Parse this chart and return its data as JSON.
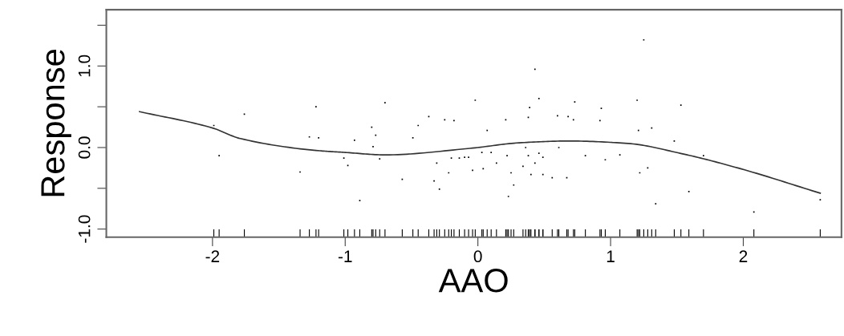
{
  "chart_data": {
    "type": "scatter",
    "xlabel": "AAO",
    "ylabel": "Response",
    "xlim": [
      -2.8,
      2.74
    ],
    "ylim": [
      -1.1,
      1.69
    ],
    "xticks": [
      -2,
      -1,
      0,
      1,
      2
    ],
    "yticks": [
      {
        "value": -1.0,
        "label": "-1.0"
      },
      {
        "value": -0.5,
        "label": null
      },
      {
        "value": 0.0,
        "label": "0.0"
      },
      {
        "value": 0.5,
        "label": null
      },
      {
        "value": 1.0,
        "label": "1.0"
      },
      {
        "value": 1.5,
        "label": null
      }
    ],
    "grid": false,
    "series": [
      {
        "type": "line",
        "color": "#333333",
        "line_style": "solid",
        "x": [
          -2.55,
          -2.0,
          -1.79,
          -1.19,
          -1.0,
          -0.7,
          -0.06,
          0.33,
          0.69,
          1.13,
          1.55,
          1.98,
          2.58
        ],
        "values": [
          0.44,
          0.24,
          0.11,
          -0.04,
          -0.06,
          -0.09,
          -0.01,
          0.06,
          0.08,
          0.05,
          -0.08,
          -0.26,
          -0.56
        ]
      },
      {
        "color": "#000000",
        "marker": "square",
        "x": [
          -1.99,
          -1.95,
          -1.76,
          -1.34,
          -1.27,
          -1.22,
          -1.2,
          -1.01,
          -0.98,
          -0.93,
          -0.89,
          -0.8,
          -0.77,
          -0.79,
          -0.74,
          -0.7,
          -0.57,
          -0.49,
          -0.45,
          -0.37,
          -0.33,
          -0.31,
          -0.29,
          -0.25,
          -0.22,
          -0.2,
          -0.18,
          -0.14,
          -0.1,
          -0.07,
          -0.04,
          -0.02,
          0.03,
          0.04,
          0.07,
          0.1,
          0.14,
          0.21,
          0.22,
          0.23,
          0.25,
          0.27,
          0.34,
          0.36,
          0.38,
          0.38,
          0.39,
          0.4,
          0.43,
          0.43,
          0.46,
          0.46,
          0.49,
          0.49,
          0.56,
          0.6,
          0.61,
          0.67,
          0.68,
          0.72,
          0.73,
          0.81,
          0.92,
          0.93,
          0.96,
          1.07,
          1.2,
          1.21,
          1.22,
          1.25,
          1.28,
          1.31,
          1.34,
          1.48,
          1.53,
          1.59,
          1.7,
          2.08,
          2.58
        ],
        "values": [
          0.27,
          -0.1,
          0.41,
          -0.3,
          0.13,
          0.5,
          0.12,
          -0.13,
          -0.22,
          0.09,
          -0.65,
          0.25,
          0.15,
          0.01,
          -0.14,
          0.55,
          -0.39,
          0.12,
          0.27,
          0.38,
          -0.41,
          -0.19,
          -0.51,
          0.34,
          -0.31,
          -0.13,
          0.33,
          -0.13,
          -0.12,
          -0.12,
          -0.28,
          0.58,
          -0.06,
          -0.26,
          0.21,
          -0.06,
          -0.19,
          0.34,
          -0.1,
          -0.6,
          -0.31,
          -0.46,
          -0.23,
          0.0,
          0.37,
          -0.1,
          0.49,
          -0.33,
          -0.19,
          0.96,
          0.6,
          -0.07,
          -0.33,
          -0.12,
          -0.37,
          0.39,
          0.0,
          -0.37,
          0.38,
          0.34,
          0.56,
          -0.1,
          0.33,
          0.48,
          -0.15,
          -0.09,
          0.58,
          0.21,
          -0.31,
          1.32,
          -0.25,
          0.24,
          -0.69,
          0.08,
          0.52,
          -0.54,
          -0.1,
          -0.79,
          -0.64
        ]
      }
    ]
  }
}
